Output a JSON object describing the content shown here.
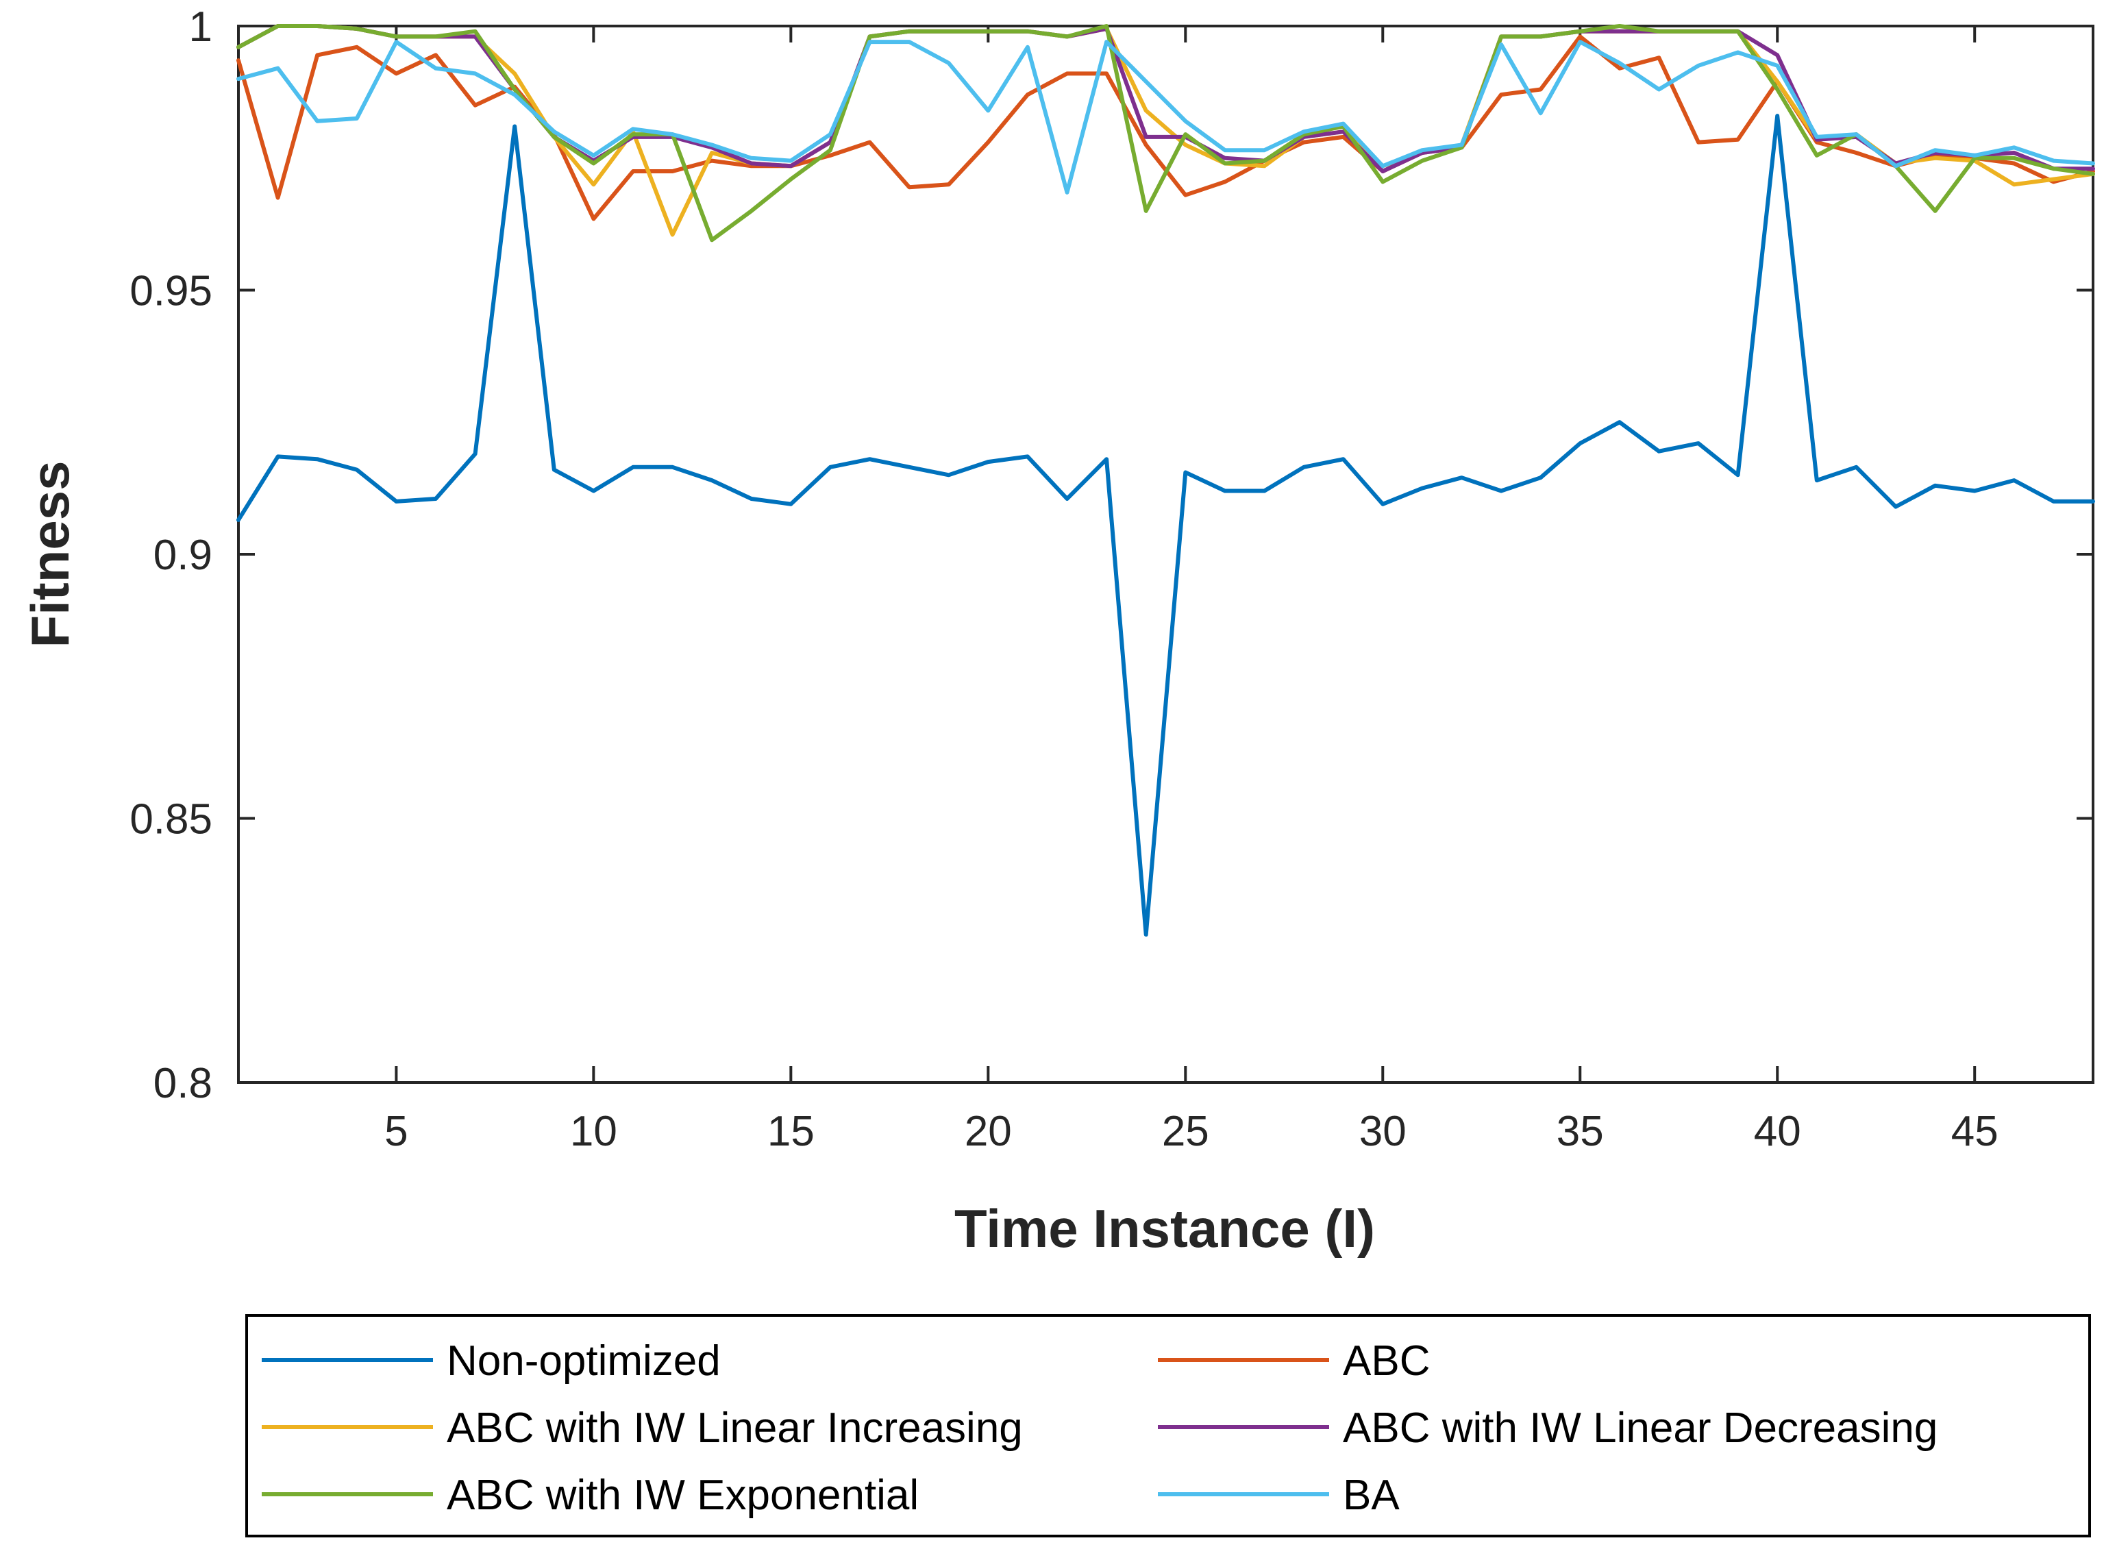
{
  "chart_data": {
    "type": "line",
    "title": "",
    "xlabel": "Time Instance (I)",
    "ylabel": "Fitness",
    "xlim": [
      1,
      48
    ],
    "ylim": [
      0.8,
      1
    ],
    "x_ticks": [
      5,
      10,
      15,
      20,
      25,
      30,
      35,
      40,
      45
    ],
    "y_ticks": [
      0.8,
      0.85,
      0.9,
      0.95,
      1
    ],
    "y_tick_labels": [
      "0.8",
      "0.85",
      "0.9",
      "0.95",
      "1"
    ],
    "grid": false,
    "legend_placement": "bottom-outside",
    "x": [
      1,
      2,
      3,
      4,
      5,
      6,
      7,
      8,
      9,
      10,
      11,
      12,
      13,
      14,
      15,
      16,
      17,
      18,
      19,
      20,
      21,
      22,
      23,
      24,
      25,
      26,
      27,
      28,
      29,
      30,
      31,
      32,
      33,
      34,
      35,
      36,
      37,
      38,
      39,
      40,
      41,
      42,
      43,
      44,
      45,
      46,
      47,
      48
    ],
    "series": [
      {
        "name": "Non-optimized",
        "color": "#0072BD",
        "values": [
          0.9065,
          0.9185,
          0.918,
          0.916,
          0.91,
          0.9105,
          0.919,
          0.981,
          0.916,
          0.912,
          0.9165,
          0.9165,
          0.914,
          0.9105,
          0.9095,
          0.9165,
          0.918,
          0.9165,
          0.915,
          0.9175,
          0.9185,
          0.9105,
          0.918,
          0.828,
          0.9155,
          0.912,
          0.912,
          0.9165,
          0.918,
          0.9095,
          0.9125,
          0.9145,
          0.912,
          0.9145,
          0.921,
          0.925,
          0.9195,
          0.921,
          0.915,
          0.983,
          0.914,
          0.9165,
          0.909,
          0.913,
          0.912,
          0.914,
          0.91,
          0.91
        ]
      },
      {
        "name": "ABC",
        "color": "#D95319",
        "values": [
          0.9935,
          0.9675,
          0.9945,
          0.996,
          0.991,
          0.9945,
          0.985,
          0.9885,
          0.9795,
          0.9635,
          0.9725,
          0.9725,
          0.9745,
          0.9735,
          0.9735,
          0.9755,
          0.978,
          0.9695,
          0.97,
          0.978,
          0.987,
          0.991,
          0.991,
          0.9775,
          0.968,
          0.9705,
          0.9745,
          0.978,
          0.979,
          0.9725,
          0.976,
          0.977,
          0.987,
          0.988,
          0.998,
          0.992,
          0.994,
          0.978,
          0.9785,
          0.9895,
          0.978,
          0.976,
          0.9735,
          0.9755,
          0.975,
          0.974,
          0.9705,
          0.9725
        ]
      },
      {
        "name": "ABC with IW Linear Increasing",
        "color": "#EDB120",
        "values": [
          0.996,
          1.0,
          1.0,
          0.9995,
          0.998,
          0.998,
          0.998,
          0.991,
          0.979,
          0.97,
          0.98,
          0.9605,
          0.976,
          0.974,
          0.9735,
          0.978,
          0.998,
          0.999,
          0.999,
          0.999,
          0.999,
          0.998,
          0.9995,
          0.984,
          0.9775,
          0.974,
          0.9735,
          0.979,
          0.98,
          0.9735,
          0.976,
          0.9775,
          0.998,
          0.998,
          0.999,
          0.999,
          0.999,
          0.999,
          0.999,
          0.9895,
          0.9785,
          0.9795,
          0.974,
          0.975,
          0.9745,
          0.97,
          0.971,
          0.972
        ]
      },
      {
        "name": "ABC with IW Linear Decreasing",
        "color": "#7E2F8E",
        "values": [
          0.996,
          1.0,
          1.0,
          0.9995,
          0.998,
          0.998,
          0.998,
          0.988,
          0.979,
          0.9745,
          0.979,
          0.979,
          0.977,
          0.974,
          0.9735,
          0.978,
          0.998,
          0.999,
          0.999,
          0.999,
          0.999,
          0.998,
          0.9995,
          0.979,
          0.979,
          0.975,
          0.9745,
          0.979,
          0.98,
          0.9725,
          0.976,
          0.977,
          0.998,
          0.998,
          0.999,
          0.999,
          0.999,
          0.999,
          0.999,
          0.9945,
          0.9785,
          0.979,
          0.974,
          0.976,
          0.9755,
          0.976,
          0.973,
          0.973
        ]
      },
      {
        "name": "ABC with IW Exponential",
        "color": "#77AC30",
        "values": [
          0.996,
          1.0,
          1.0,
          0.9995,
          0.998,
          0.998,
          0.999,
          0.988,
          0.979,
          0.974,
          0.9795,
          0.9795,
          0.9595,
          0.965,
          0.971,
          0.9765,
          0.998,
          0.999,
          0.999,
          0.999,
          0.999,
          0.998,
          1.0,
          0.965,
          0.9795,
          0.974,
          0.9745,
          0.9795,
          0.981,
          0.9705,
          0.9745,
          0.977,
          0.998,
          0.998,
          0.999,
          1.0,
          0.999,
          0.999,
          0.999,
          0.988,
          0.9755,
          0.9795,
          0.9735,
          0.965,
          0.975,
          0.975,
          0.973,
          0.972
        ]
      },
      {
        "name": "BA",
        "color": "#4DBEEE",
        "values": [
          0.99,
          0.992,
          0.982,
          0.9825,
          0.997,
          0.992,
          0.991,
          0.987,
          0.98,
          0.9755,
          0.9805,
          0.9795,
          0.9775,
          0.975,
          0.9745,
          0.9795,
          0.997,
          0.997,
          0.993,
          0.984,
          0.996,
          0.9685,
          0.997,
          0.9895,
          0.982,
          0.9765,
          0.9765,
          0.98,
          0.9815,
          0.9735,
          0.9765,
          0.9775,
          0.9965,
          0.9835,
          0.997,
          0.993,
          0.988,
          0.9925,
          0.995,
          0.9925,
          0.979,
          0.9795,
          0.9735,
          0.9765,
          0.9755,
          0.977,
          0.9745,
          0.974
        ]
      }
    ],
    "legend": {
      "entries": [
        "Non-optimized",
        "ABC",
        "ABC with IW Linear Increasing",
        "ABC with IW Linear Decreasing",
        "ABC with IW Exponential",
        "BA"
      ]
    }
  }
}
